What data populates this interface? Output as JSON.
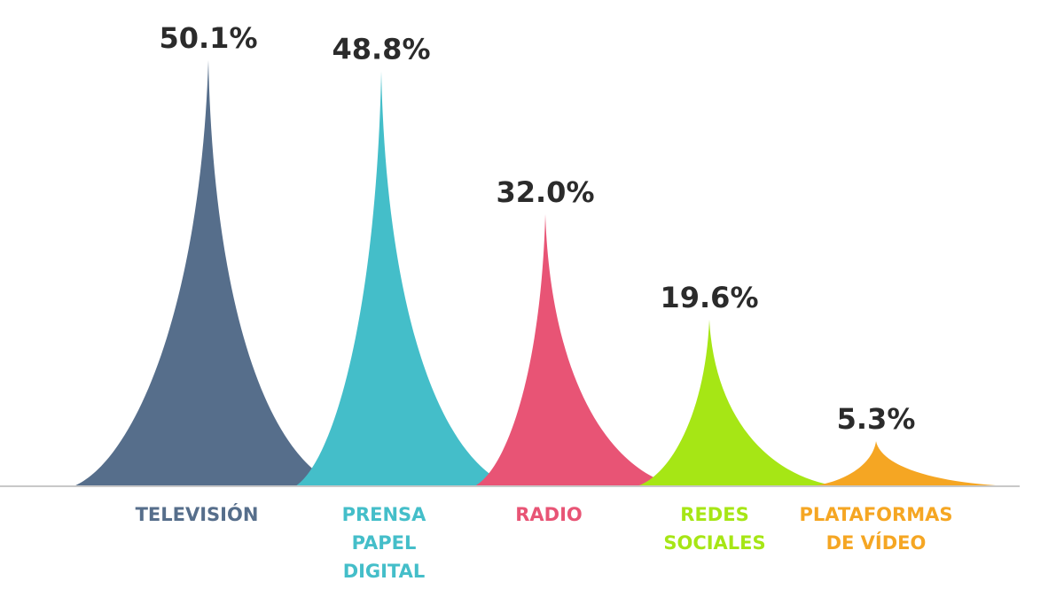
{
  "chart_data": {
    "type": "bar",
    "style": "peak-shaped bars",
    "categories": [
      [
        "TELEVISIÓN"
      ],
      [
        "PRENSA",
        "PAPEL",
        "DIGITAL"
      ],
      [
        "RADIO"
      ],
      [
        "REDES",
        "SOCIALES"
      ],
      [
        "PLATAFORMAS",
        "DE VÍDEO"
      ]
    ],
    "values": [
      50.1,
      48.8,
      32.0,
      19.6,
      5.3
    ],
    "value_labels": [
      "50.1%",
      "48.8%",
      "32.0%",
      "19.6%",
      "5.3%"
    ],
    "colors": [
      "#566e8b",
      "#44bec9",
      "#e85475",
      "#a6e615",
      "#f5a623"
    ],
    "value_label_color": "#2b2b2b",
    "baseline_color": "#c8c8c8",
    "ylim": [
      0,
      50.1
    ],
    "grid": false,
    "legend": "none"
  }
}
